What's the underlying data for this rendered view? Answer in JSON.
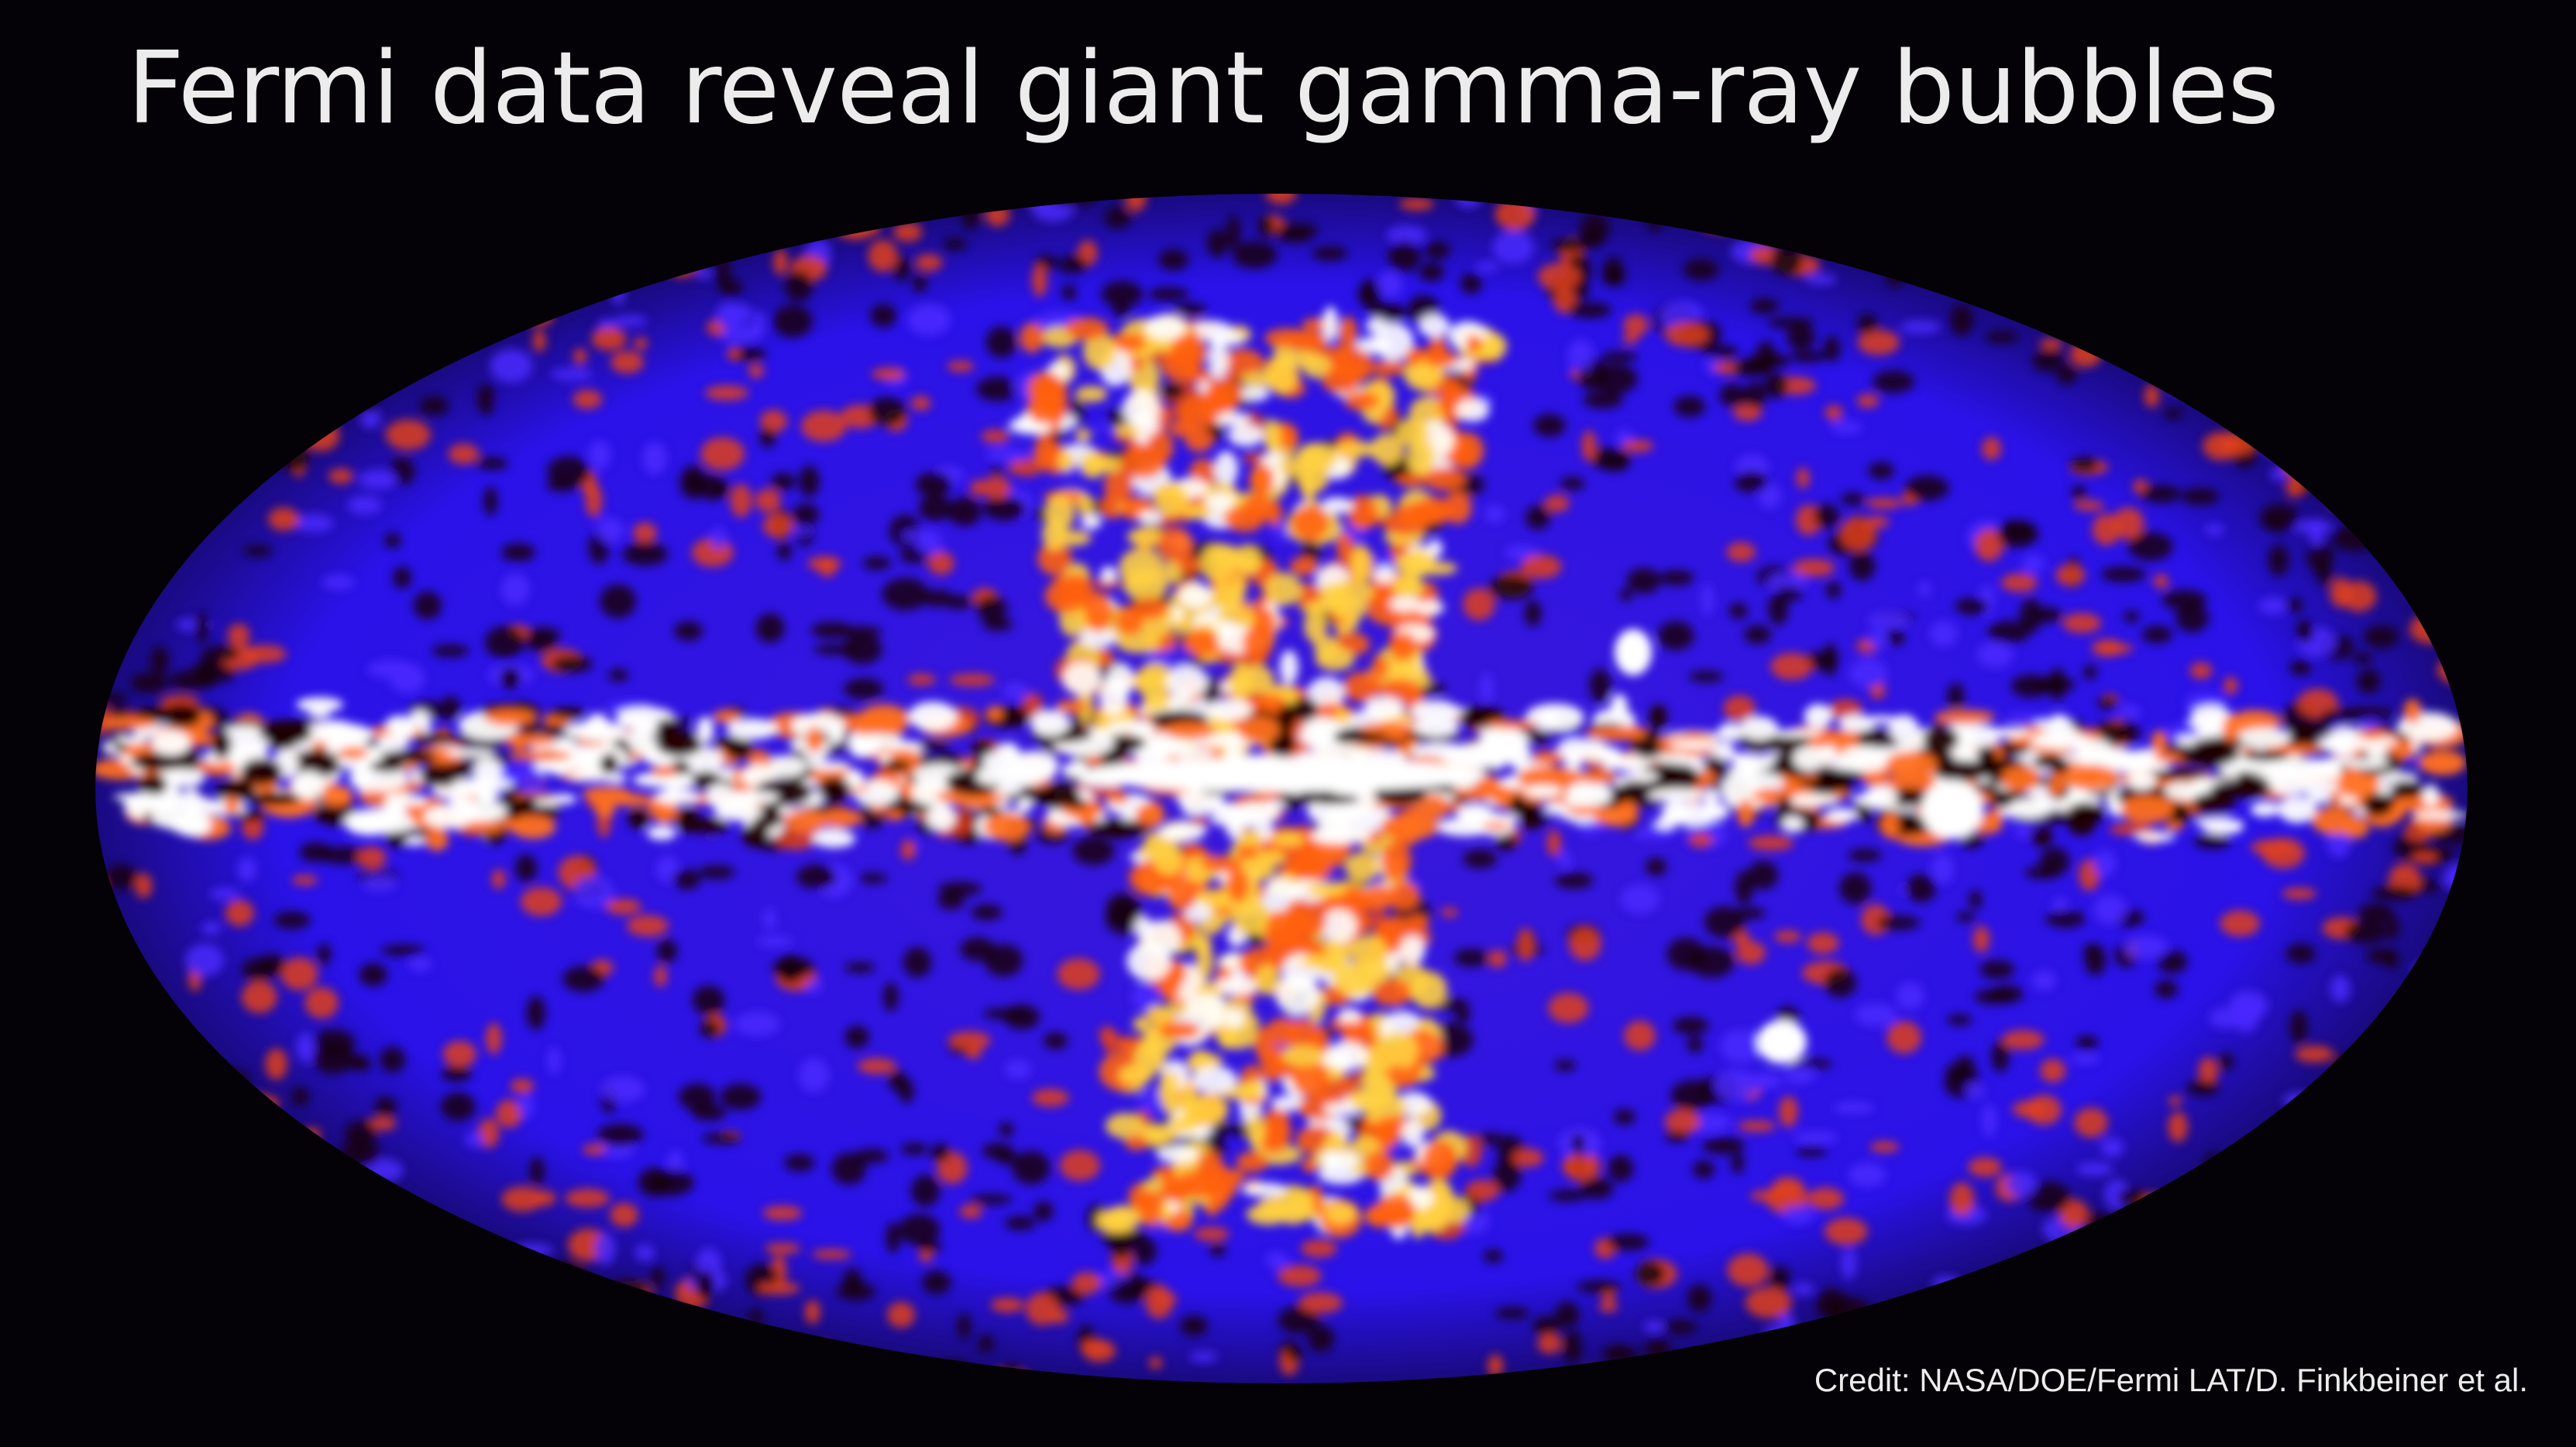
{
  "title": "Fermi data reveal giant gamma-ray bubbles",
  "credit": "Credit: NASA/DOE/Fermi LAT/D. Finkbeiner et al.",
  "image": {
    "subject": "all-sky gamma-ray map in elliptical projection",
    "colors": {
      "background": "#040206",
      "low": "#2a10e0",
      "mid": "#ff5010",
      "high": "#ffffff",
      "void": "#1a0000"
    }
  }
}
